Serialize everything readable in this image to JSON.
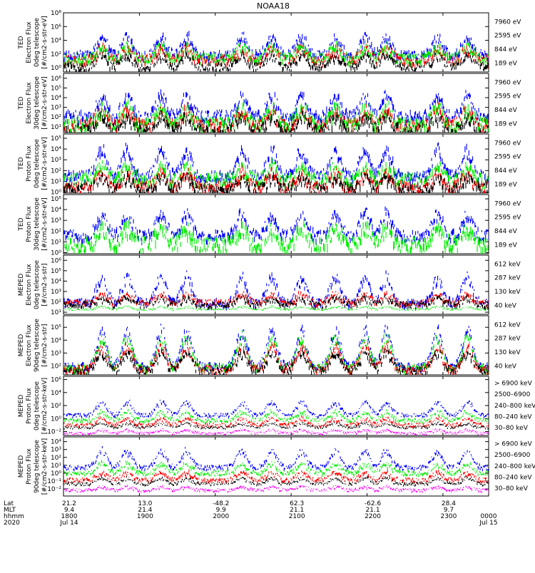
{
  "title": "NOAA18",
  "colors": {
    "blue": "#0000ff",
    "red": "#ff0000",
    "green": "#00ee00",
    "black": "#000000",
    "magenta": "#ff00ff"
  },
  "chart_data": [
    {
      "type": "scatter",
      "ylabel": [
        "TED",
        "Electron Flux",
        "0deg telescope",
        "[#/cm2-s-str-eV]"
      ],
      "yticks": [
        {
          "e": 0,
          "label": "10⁰"
        },
        {
          "e": 2,
          "label": "10²"
        },
        {
          "e": 4,
          "label": "10⁴"
        },
        {
          "e": 6,
          "label": "10⁶"
        },
        {
          "e": 8,
          "label": "10⁸"
        }
      ],
      "ylim_exp": [
        -0.6,
        8
      ],
      "legend": [
        {
          "label": "7960 eV",
          "color": "black"
        },
        {
          "label": "2595 eV",
          "color": "red"
        },
        {
          "label": "844 eV",
          "color": "green"
        },
        {
          "label": "189 eV",
          "color": "blue"
        }
      ],
      "series": [
        {
          "color": "blue",
          "base": 2,
          "peak": 5,
          "noise": 0.7
        },
        {
          "color": "red",
          "base": 1.3,
          "peak": 3.2,
          "noise": 0.7
        },
        {
          "color": "green",
          "base": 1.5,
          "peak": 3.6,
          "noise": 0.7
        },
        {
          "color": "black",
          "base": 0.3,
          "peak": 2.2,
          "noise": 0.6
        }
      ]
    },
    {
      "type": "scatter",
      "ylabel": [
        "TED",
        "Electron Flux",
        "30deg telescope",
        "[#/cm2-s-str-eV]"
      ],
      "yticks": [
        {
          "e": 1,
          "label": "10¹"
        },
        {
          "e": 2,
          "label": "10²"
        },
        {
          "e": 3,
          "label": "10³"
        },
        {
          "e": 4,
          "label": "10⁴"
        },
        {
          "e": 5,
          "label": "10⁵"
        },
        {
          "e": 6,
          "label": "10⁶"
        }
      ],
      "ylim_exp": [
        0.4,
        6.5
      ],
      "legend": [
        {
          "label": "7960 eV",
          "color": "black"
        },
        {
          "label": "2595 eV",
          "color": "red"
        },
        {
          "label": "844 eV",
          "color": "green"
        },
        {
          "label": "189 eV",
          "color": "blue"
        }
      ],
      "series": [
        {
          "color": "blue",
          "base": 2.2,
          "peak": 4.6,
          "noise": 0.6
        },
        {
          "color": "red",
          "base": 1.3,
          "peak": 3.0,
          "noise": 0.6
        },
        {
          "color": "green",
          "base": 1.4,
          "peak": 3.3,
          "noise": 0.7
        },
        {
          "color": "black",
          "base": 0.8,
          "peak": 2.3,
          "noise": 0.6
        }
      ]
    },
    {
      "type": "scatter",
      "ylabel": [
        "TED",
        "Proton Flux",
        "0deg telescope",
        "[#/cm2-s-str-eV]"
      ],
      "yticks": [
        {
          "e": 0,
          "label": "10⁰"
        },
        {
          "e": 1,
          "label": "10¹"
        },
        {
          "e": 2,
          "label": "10²"
        },
        {
          "e": 3,
          "label": "10³"
        },
        {
          "e": 4,
          "label": "10⁴"
        },
        {
          "e": 5,
          "label": "10⁵"
        }
      ],
      "ylim_exp": [
        -0.1,
        5.4
      ],
      "legend": [
        {
          "label": "7960 eV",
          "color": "black"
        },
        {
          "label": "2595 eV",
          "color": "red"
        },
        {
          "label": "844 eV",
          "color": "green"
        },
        {
          "label": "189 eV",
          "color": "blue"
        }
      ],
      "series": [
        {
          "color": "blue",
          "base": 1.6,
          "peak": 4.3,
          "noise": 0.5
        },
        {
          "color": "green",
          "base": 1.3,
          "peak": 2.6,
          "noise": 0.6
        },
        {
          "color": "red",
          "base": 0.6,
          "peak": 2.0,
          "noise": 0.5
        },
        {
          "color": "black",
          "base": 0.4,
          "peak": 1.6,
          "noise": 0.5
        }
      ]
    },
    {
      "type": "scatter",
      "ylabel": [
        "TED",
        "Proton Flux",
        "30deg telescope",
        "[#/cm2-s-str-eV]"
      ],
      "yticks": [
        {
          "e": 0,
          "label": "10⁰"
        },
        {
          "e": 1,
          "label": "10¹"
        },
        {
          "e": 2,
          "label": "10²"
        },
        {
          "e": 3,
          "label": "10³"
        },
        {
          "e": 4,
          "label": "10⁴"
        },
        {
          "e": 5,
          "label": "10⁵"
        }
      ],
      "ylim_exp": [
        -0.1,
        5.4
      ],
      "legend": [
        {
          "label": "7960 eV",
          "color": "black"
        },
        {
          "label": "2595 eV",
          "color": "red"
        },
        {
          "label": "844 eV",
          "color": "green"
        },
        {
          "label": "189 eV",
          "color": "blue"
        }
      ],
      "series": [
        {
          "color": "blue",
          "base": 1.7,
          "peak": 4.0,
          "noise": 0.5
        },
        {
          "color": "green",
          "base": 0.9,
          "peak": 2.7,
          "noise": 0.7
        }
      ]
    },
    {
      "type": "scatter",
      "ylabel": [
        "MEPED",
        "Electron Flux",
        "0deg telescope",
        "[#/cm2-s-str]"
      ],
      "yticks": [
        {
          "e": 1,
          "label": "10¹"
        },
        {
          "e": 2,
          "label": "10²"
        },
        {
          "e": 3,
          "label": "10³"
        },
        {
          "e": 4,
          "label": "10⁴"
        },
        {
          "e": 5,
          "label": "10⁵"
        },
        {
          "e": 6,
          "label": "10⁶"
        }
      ],
      "ylim_exp": [
        0.8,
        6.5
      ],
      "legend": [
        {
          "label": "612 keV",
          "color": "black"
        },
        {
          "label": "287 keV",
          "color": "red"
        },
        {
          "label": "130 keV",
          "color": "green"
        },
        {
          "label": "40 keV",
          "color": "blue"
        }
      ],
      "series": [
        {
          "color": "blue",
          "base": 2.0,
          "peak": 4.8,
          "noise": 0.4
        },
        {
          "color": "red",
          "base": 2.0,
          "peak": 2.9,
          "noise": 0.3
        },
        {
          "color": "black",
          "base": 1.8,
          "peak": 2.5,
          "noise": 0.3
        },
        {
          "color": "green",
          "base": 1.3,
          "peak": 1.6,
          "noise": 0.1
        }
      ]
    },
    {
      "type": "scatter",
      "ylabel": [
        "MEPED",
        "Electron Flux",
        "90deg telescope",
        "[#/cm2-s-str]"
      ],
      "yticks": [
        {
          "e": 2,
          "label": "10²"
        },
        {
          "e": 3,
          "label": "10³"
        },
        {
          "e": 4,
          "label": "10⁴"
        },
        {
          "e": 5,
          "label": "10⁵"
        }
      ],
      "ylim_exp": [
        1.3,
        5.9
      ],
      "legend": [
        {
          "label": "612 keV",
          "color": "black"
        },
        {
          "label": "287 keV",
          "color": "red"
        },
        {
          "label": "130 keV",
          "color": "green"
        },
        {
          "label": "40 keV",
          "color": "blue"
        }
      ],
      "series": [
        {
          "color": "blue",
          "base": 2.0,
          "peak": 5.2,
          "noise": 0.3
        },
        {
          "color": "green",
          "base": 1.9,
          "peak": 4.6,
          "noise": 0.3
        },
        {
          "color": "red",
          "base": 1.8,
          "peak": 3.8,
          "noise": 0.3
        },
        {
          "color": "black",
          "base": 1.7,
          "peak": 3.3,
          "noise": 0.3
        }
      ]
    },
    {
      "type": "scatter",
      "ylabel": [
        "MEPED",
        "Proton Flux",
        "0deg telescope",
        "[#/cm2-s-str-keV]"
      ],
      "yticks": [
        {
          "e": -2,
          "label": "10⁻²"
        },
        {
          "e": 0,
          "label": "10⁰"
        },
        {
          "e": 2,
          "label": "10²"
        },
        {
          "e": 4,
          "label": "10⁴"
        },
        {
          "e": 6,
          "label": "10⁶"
        }
      ],
      "ylim_exp": [
        -2.6,
        6.5
      ],
      "legend": [
        {
          "label": "> 6900 keV",
          "color": "magenta"
        },
        {
          "label": "2500–6900",
          "color": "black"
        },
        {
          "label": "240–800 keV",
          "color": "red"
        },
        {
          "label": "80–240 keV",
          "color": "green"
        },
        {
          "label": "30–80 keV",
          "color": "blue"
        }
      ],
      "series": [
        {
          "color": "blue",
          "base": 0.6,
          "peak": 2.9,
          "noise": 0.3
        },
        {
          "color": "green",
          "base": -0.2,
          "peak": 1.3,
          "noise": 0.3
        },
        {
          "color": "red",
          "base": -0.9,
          "peak": 0.2,
          "noise": 0.3
        },
        {
          "color": "black",
          "base": -1.3,
          "peak": -0.6,
          "noise": 0.2
        },
        {
          "color": "magenta",
          "base": -2.2,
          "peak": -1.6,
          "noise": 0.2
        }
      ]
    },
    {
      "type": "scatter",
      "ylabel": [
        "MEPED",
        "Proton Flux",
        "90deg telescope",
        "[#/cm2-s-str-keV]"
      ],
      "yticks": [
        {
          "e": -2,
          "label": "10⁻²"
        },
        {
          "e": -1,
          "label": "10⁻¹"
        },
        {
          "e": 0,
          "label": "10⁰"
        },
        {
          "e": 1,
          "label": "10¹"
        },
        {
          "e": 2,
          "label": "10²"
        },
        {
          "e": 3,
          "label": "10³"
        },
        {
          "e": 4,
          "label": "10⁴"
        }
      ],
      "ylim_exp": [
        -2.9,
        4.6
      ],
      "legend": [
        {
          "label": "> 6900 keV",
          "color": "magenta"
        },
        {
          "label": "2500–6900",
          "color": "black"
        },
        {
          "label": "240–800 keV",
          "color": "red"
        },
        {
          "label": "80–240 keV",
          "color": "green"
        },
        {
          "label": "30–80 keV",
          "color": "blue"
        }
      ],
      "series": [
        {
          "color": "blue",
          "base": 0.8,
          "peak": 3.2,
          "noise": 0.3
        },
        {
          "color": "green",
          "base": 0.1,
          "peak": 1.4,
          "noise": 0.3
        },
        {
          "color": "red",
          "base": -0.8,
          "peak": 0.3,
          "noise": 0.3
        },
        {
          "color": "black",
          "base": -1.3,
          "peak": -0.5,
          "noise": 0.2
        },
        {
          "color": "magenta",
          "base": -2.1,
          "peak": -1.6,
          "noise": 0.2
        }
      ]
    }
  ],
  "passes": [
    0.09,
    0.15,
    0.23,
    0.29,
    0.42,
    0.49,
    0.56,
    0.64,
    0.71,
    0.76,
    0.88,
    0.95
  ],
  "xaxis": {
    "row_labels": [
      "Lat",
      "MLT",
      "hhmm",
      "2020"
    ],
    "ticks": [
      {
        "frac": 0.0,
        "lat": "21.2",
        "mlt": "9.4",
        "hhmm": "1800",
        "date": "Jul 14"
      },
      {
        "frac": 0.1785,
        "lat": "13.0",
        "mlt": "21.4",
        "hhmm": "1900",
        "date": ""
      },
      {
        "frac": 0.357,
        "lat": "-48.2",
        "mlt": "9.9",
        "hhmm": "2000",
        "date": ""
      },
      {
        "frac": 0.5355,
        "lat": "62.3",
        "mlt": "21.1",
        "hhmm": "2100",
        "date": ""
      },
      {
        "frac": 0.714,
        "lat": "-62.6",
        "mlt": "21.1",
        "hhmm": "2200",
        "date": ""
      },
      {
        "frac": 0.8925,
        "lat": "28.4",
        "mlt": "9.7",
        "hhmm": "2300",
        "date": ""
      },
      {
        "frac": 1.0,
        "lat": "",
        "mlt": "",
        "hhmm": "0000",
        "date": "Jul 15"
      }
    ]
  }
}
